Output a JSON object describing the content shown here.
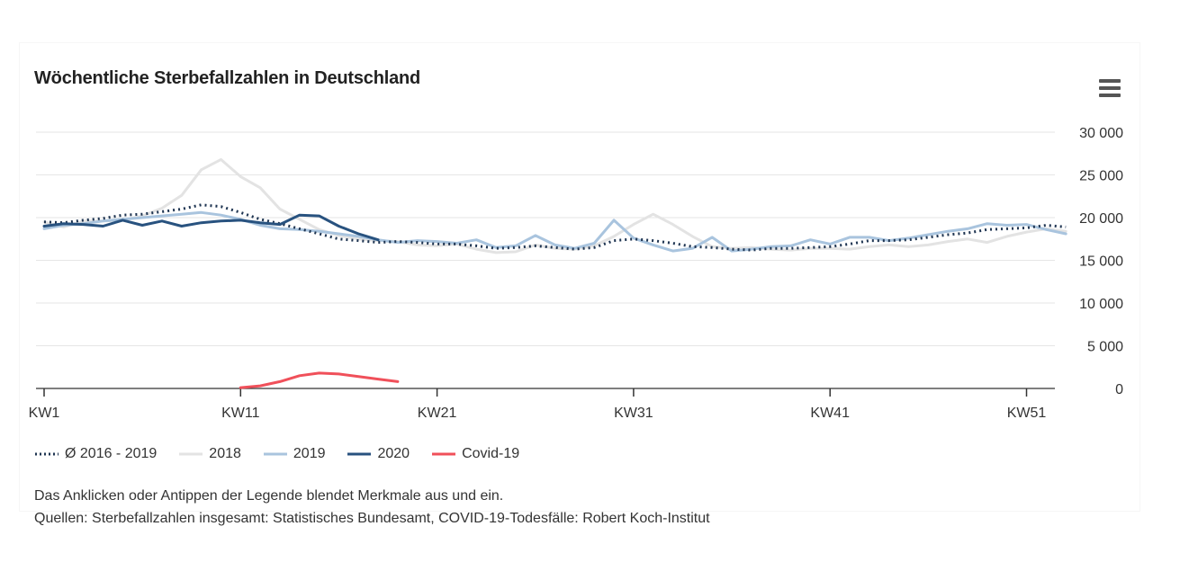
{
  "title": "Wöchentliche Sterbefallzahlen in Deutschland",
  "menu_icon": "hamburger-menu-icon",
  "legend": [
    {
      "label": "Ø 2016 - 2019",
      "color": "#1f3552",
      "style": "dotted"
    },
    {
      "label": "2018",
      "color": "#e3e3e3",
      "style": "solid"
    },
    {
      "label": "2019",
      "color": "#a9c4de",
      "style": "solid"
    },
    {
      "label": "2020",
      "color": "#28527f",
      "style": "solid"
    },
    {
      "label": "Covid-19",
      "color": "#f0505a",
      "style": "solid"
    }
  ],
  "notes": {
    "line1": "Das Anklicken oder Antippen der Legende blendet Merkmale aus und ein.",
    "line2": "Quellen: Sterbefallzahlen insgesamt: Statistisches Bundesamt, COVID-19-Todesfälle: Robert Koch-Institut"
  },
  "chart_data": {
    "type": "line",
    "title": "Wöchentliche Sterbefallzahlen in Deutschland",
    "xlabel": "",
    "ylabel": "",
    "ylim": [
      0,
      30000
    ],
    "yticks": [
      0,
      5000,
      10000,
      15000,
      20000,
      25000,
      30000
    ],
    "ytick_labels": [
      "0",
      "5 000",
      "10 000",
      "15 000",
      "20 000",
      "25 000",
      "30 000"
    ],
    "xlim": [
      1,
      53
    ],
    "xticks": [
      1,
      11,
      21,
      31,
      41,
      51
    ],
    "xtick_labels": [
      "KW1",
      "KW11",
      "KW21",
      "KW31",
      "KW41",
      "KW51"
    ],
    "grid": true,
    "legend_position": "bottom-left",
    "series": [
      {
        "name": "2018",
        "color": "#e3e3e3",
        "style": "solid",
        "start_week": 1,
        "values": [
          19500,
          18900,
          19600,
          19600,
          19700,
          20200,
          21100,
          22600,
          25600,
          26800,
          24800,
          23500,
          21000,
          19800,
          18600,
          17900,
          17500,
          17300,
          17200,
          16800,
          16700,
          16900,
          16300,
          15900,
          16000,
          16800,
          16400,
          16300,
          16700,
          17800,
          19200,
          20400,
          19200,
          17800,
          16600,
          16400,
          16500,
          16300,
          16200,
          16400,
          16400,
          16300,
          16600,
          16800,
          16600,
          16800,
          17200,
          17500,
          17100,
          17800,
          18300,
          18700,
          18400
        ]
      },
      {
        "name": "2019",
        "color": "#a9c4de",
        "style": "solid",
        "start_week": 1,
        "values": [
          18700,
          19100,
          19300,
          19600,
          19800,
          20000,
          20200,
          20400,
          20600,
          20300,
          19800,
          19100,
          18700,
          18600,
          18400,
          18100,
          17800,
          17400,
          17100,
          17300,
          17200,
          17000,
          17400,
          16500,
          16700,
          17900,
          16800,
          16400,
          17000,
          19700,
          17600,
          16800,
          16100,
          16400,
          17700,
          16100,
          16300,
          16600,
          16700,
          17400,
          16900,
          17700,
          17700,
          17300,
          17600,
          18000,
          18400,
          18700,
          19300,
          19100,
          19200,
          18600,
          18100
        ]
      },
      {
        "name": "Ø 2016 - 2019",
        "color": "#1f3552",
        "style": "dotted",
        "start_week": 1,
        "values": [
          19500,
          19400,
          19700,
          19900,
          20300,
          20400,
          20700,
          21000,
          21500,
          21300,
          20600,
          19800,
          19300,
          18700,
          18100,
          17500,
          17300,
          17100,
          17200,
          17100,
          16900,
          16900,
          16700,
          16400,
          16500,
          16700,
          16500,
          16300,
          16500,
          17300,
          17500,
          17300,
          17000,
          16600,
          16500,
          16300,
          16200,
          16400,
          16400,
          16500,
          16600,
          16900,
          17300,
          17300,
          17400,
          17700,
          18000,
          18200,
          18600,
          18700,
          18800,
          19100,
          18900
        ]
      },
      {
        "name": "2020",
        "color": "#28527f",
        "style": "solid",
        "start_week": 1,
        "values": [
          19000,
          19300,
          19200,
          19000,
          19700,
          19100,
          19600,
          19000,
          19400,
          19600,
          19700,
          19400,
          19200,
          20300,
          20200,
          19000,
          18100,
          17400
        ]
      },
      {
        "name": "Covid-19",
        "color": "#f0505a",
        "style": "solid",
        "start_week": 11,
        "values": [
          100,
          300,
          800,
          1500,
          1800,
          1700,
          1400,
          1100,
          800
        ]
      }
    ]
  }
}
